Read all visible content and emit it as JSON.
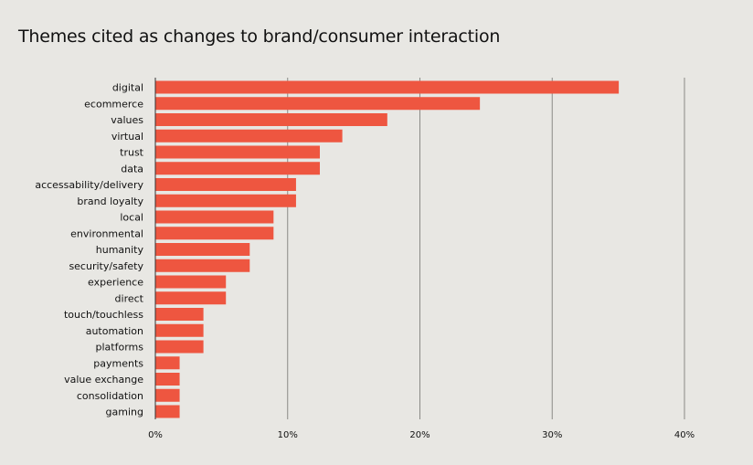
{
  "chart_data": {
    "type": "bar",
    "orientation": "horizontal",
    "title": "Themes cited as changes to brand/consumer interaction",
    "xlabel": "",
    "ylabel": "",
    "categories": [
      "digital",
      "ecommerce",
      "values",
      "virtual",
      "trust",
      "data",
      "accessability/delivery",
      "brand loyalty",
      "local",
      "environmental",
      "humanity",
      "security/safety",
      "experience",
      "direct",
      "touch/touchless",
      "automation",
      "platforms",
      "payments",
      "value exchange",
      "consolidation",
      "gaming"
    ],
    "values": [
      35,
      24.5,
      17.5,
      14.1,
      12.4,
      12.4,
      10.6,
      10.6,
      8.9,
      8.9,
      7.1,
      7.1,
      5.3,
      5.3,
      3.6,
      3.6,
      3.6,
      1.8,
      1.8,
      1.8,
      1.8
    ],
    "xlim": [
      0,
      40
    ],
    "xticks": [
      0,
      10,
      20,
      30,
      40
    ],
    "xtick_labels": [
      "0%",
      "10%",
      "20%",
      "30%",
      "40%"
    ],
    "grid": "vertical",
    "bar_color": "#ee5640",
    "grid_color": "#8a8a86"
  }
}
